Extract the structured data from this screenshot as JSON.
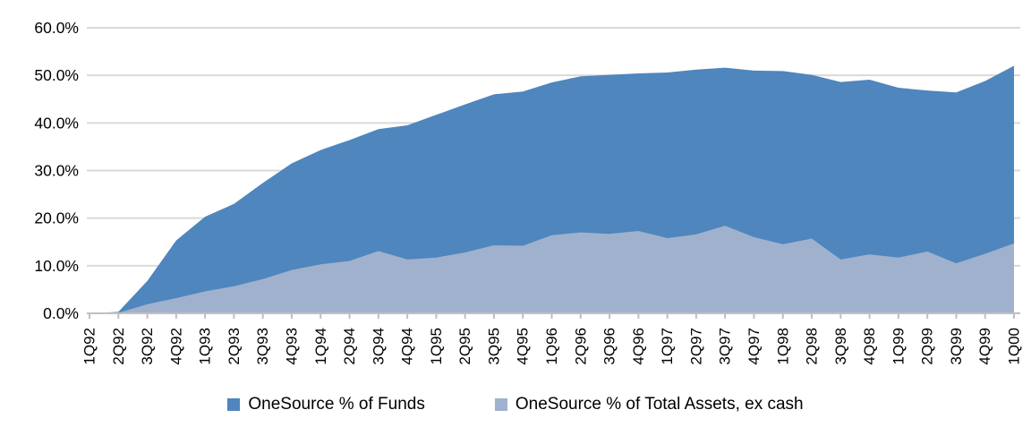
{
  "chart_data": {
    "type": "area",
    "title": "",
    "xlabel": "",
    "ylabel": "",
    "categories": [
      "1Q92",
      "2Q92",
      "3Q92",
      "4Q92",
      "1Q93",
      "2Q93",
      "3Q93",
      "4Q93",
      "1Q94",
      "2Q94",
      "3Q94",
      "4Q94",
      "1Q95",
      "2Q95",
      "3Q95",
      "4Q95",
      "1Q96",
      "2Q96",
      "3Q96",
      "4Q96",
      "1Q97",
      "2Q97",
      "3Q97",
      "4Q97",
      "1Q98",
      "2Q98",
      "3Q98",
      "4Q98",
      "1Q99",
      "2Q99",
      "3Q99",
      "4Q99",
      "1Q00"
    ],
    "series": [
      {
        "name": "OneSource % of Funds",
        "color": "#4e86bd",
        "values": [
          0,
          0.3,
          6.8,
          15.3,
          20.3,
          23.0,
          27.4,
          31.5,
          34.3,
          36.4,
          38.7,
          39.5,
          41.7,
          43.9,
          46.0,
          46.6,
          48.5,
          49.8,
          50.1,
          50.4,
          50.6,
          51.2,
          51.6,
          51.0,
          50.9,
          50.1,
          48.6,
          49.1,
          47.4,
          46.8,
          46.4,
          48.8,
          52.0
        ]
      },
      {
        "name": "OneSource % of Total Assets, ex cash",
        "color": "#9fb1cd",
        "values": [
          0,
          0.1,
          1.9,
          3.2,
          4.6,
          5.7,
          7.2,
          9.1,
          10.3,
          11.0,
          13.1,
          11.3,
          11.7,
          12.8,
          14.3,
          14.2,
          16.4,
          17.0,
          16.7,
          17.3,
          15.8,
          16.6,
          18.4,
          16.0,
          14.5,
          15.7,
          11.3,
          12.4,
          11.7,
          13.0,
          10.5,
          12.5,
          14.7
        ]
      }
    ],
    "ylim": [
      0,
      60
    ],
    "ytick_step": 10,
    "ytick_labels": [
      "0.0%",
      "10.0%",
      "20.0%",
      "30.0%",
      "40.0%",
      "50.0%",
      "60.0%"
    ],
    "grid": true,
    "legend_position": "bottom",
    "gridline_color": "#d9d9d9",
    "axis_line_color": "#bfbfbf",
    "tick_label_color": "#000000"
  }
}
